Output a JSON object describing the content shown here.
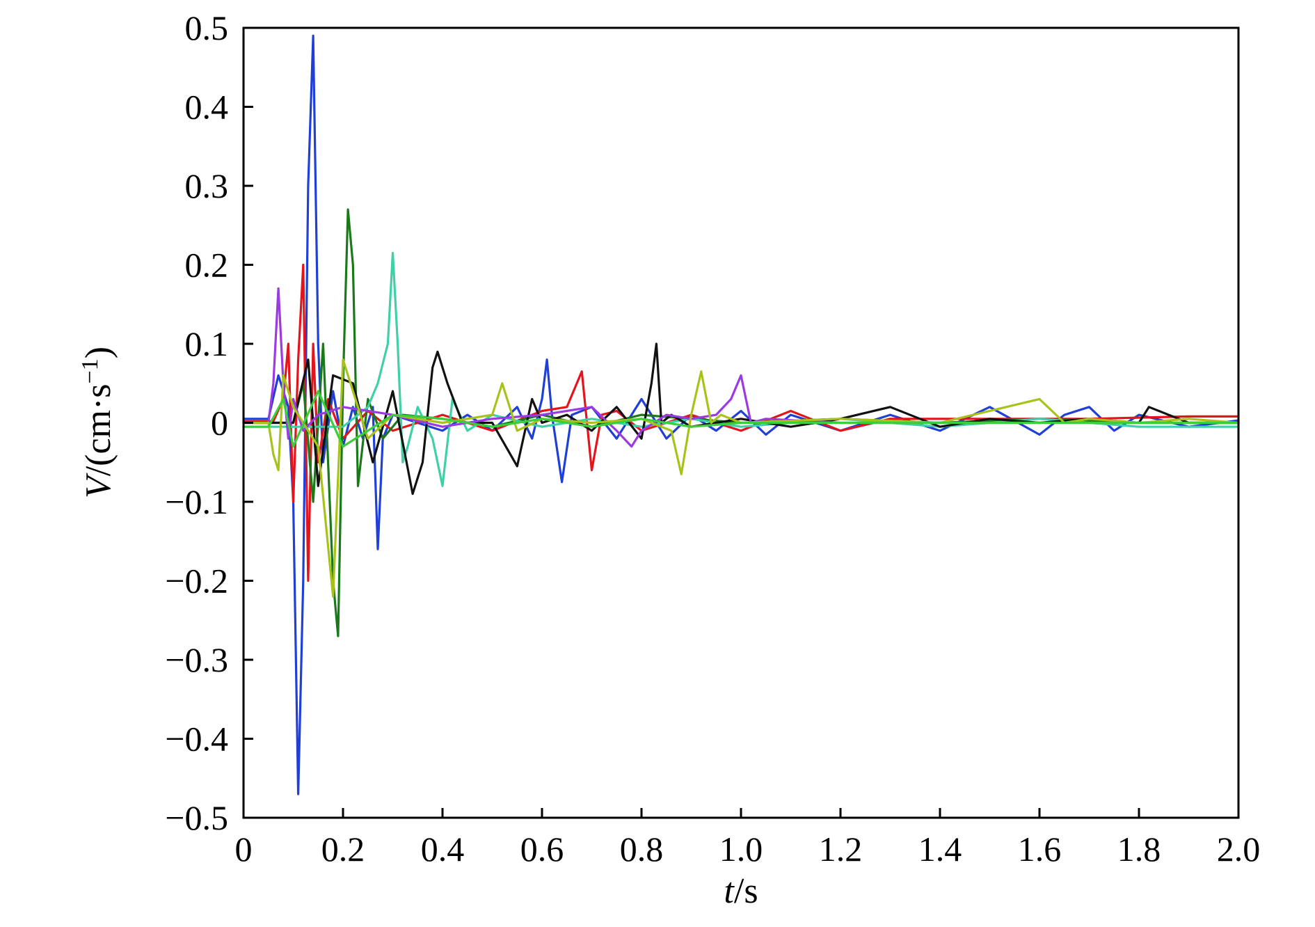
{
  "chart_data": {
    "type": "line",
    "title": "",
    "xlabel_var": "t",
    "xlabel_unit": "/s",
    "ylabel_var": "V",
    "ylabel_unit_pre": "/(cm·s",
    "ylabel_unit_sup": "−1",
    "ylabel_unit_post": ")",
    "xlim": [
      0,
      2.0
    ],
    "ylim": [
      -0.5,
      0.5
    ],
    "grid": false,
    "legend": "none",
    "x_ticks": [
      {
        "value": 0,
        "label": "0"
      },
      {
        "value": 0.2,
        "label": "0.2"
      },
      {
        "value": 0.4,
        "label": "0.4"
      },
      {
        "value": 0.6,
        "label": "0.6"
      },
      {
        "value": 0.8,
        "label": "0.8"
      },
      {
        "value": 1.0,
        "label": "1.0"
      },
      {
        "value": 1.2,
        "label": "1.2"
      },
      {
        "value": 1.4,
        "label": "1.4"
      },
      {
        "value": 1.6,
        "label": "1.6"
      },
      {
        "value": 1.8,
        "label": "1.8"
      },
      {
        "value": 2.0,
        "label": "2.0"
      }
    ],
    "y_ticks": [
      {
        "value": 0.5,
        "label": "0.5"
      },
      {
        "value": 0.4,
        "label": "0.4"
      },
      {
        "value": 0.3,
        "label": "0.3"
      },
      {
        "value": 0.2,
        "label": "0.2"
      },
      {
        "value": 0.1,
        "label": "0.1"
      },
      {
        "value": 0,
        "label": "0"
      },
      {
        "value": -0.1,
        "label": "−0.1"
      },
      {
        "value": -0.2,
        "label": "−0.2"
      },
      {
        "value": -0.3,
        "label": "−0.3"
      },
      {
        "value": -0.4,
        "label": "−0.4"
      },
      {
        "value": -0.5,
        "label": "−0.5"
      }
    ],
    "series": [
      {
        "color": "#1f3fd6",
        "x": [
          0,
          0.05,
          0.07,
          0.09,
          0.1,
          0.11,
          0.12,
          0.13,
          0.14,
          0.15,
          0.16,
          0.18,
          0.2,
          0.22,
          0.24,
          0.26,
          0.27,
          0.28,
          0.3,
          0.35,
          0.4,
          0.45,
          0.5,
          0.55,
          0.58,
          0.6,
          0.61,
          0.62,
          0.64,
          0.66,
          0.7,
          0.75,
          0.8,
          0.85,
          0.9,
          0.95,
          1.0,
          1.05,
          1.1,
          1.2,
          1.3,
          1.4,
          1.5,
          1.6,
          1.65,
          1.7,
          1.75,
          1.8,
          1.9,
          2.0
        ],
        "y": [
          0.005,
          0.005,
          0.06,
          0.02,
          -0.1,
          -0.47,
          -0.2,
          0.3,
          0.49,
          0.1,
          -0.05,
          0.04,
          -0.03,
          0.02,
          -0.02,
          0.02,
          -0.16,
          -0.02,
          0.01,
          0.0,
          -0.01,
          0.01,
          -0.01,
          0.02,
          -0.02,
          0.03,
          0.08,
          0.01,
          -0.075,
          0.01,
          0.02,
          -0.02,
          0.03,
          -0.02,
          0.01,
          -0.01,
          0.015,
          -0.015,
          0.01,
          -0.01,
          0.01,
          -0.01,
          0.02,
          -0.015,
          0.01,
          0.02,
          -0.01,
          0.01,
          -0.005,
          0.003
        ]
      },
      {
        "color": "#e3141c",
        "x": [
          0,
          0.06,
          0.08,
          0.09,
          0.1,
          0.11,
          0.12,
          0.13,
          0.14,
          0.15,
          0.17,
          0.2,
          0.25,
          0.3,
          0.4,
          0.5,
          0.6,
          0.65,
          0.68,
          0.7,
          0.72,
          0.75,
          0.8,
          0.9,
          1.0,
          1.1,
          1.2,
          1.3,
          1.5,
          1.7,
          1.9,
          2.0
        ],
        "y": [
          0.002,
          0.002,
          0.03,
          0.1,
          -0.1,
          0.08,
          0.2,
          -0.2,
          0.1,
          -0.05,
          0.03,
          -0.02,
          0.015,
          -0.01,
          0.01,
          -0.01,
          0.015,
          0.02,
          0.065,
          -0.06,
          0.01,
          0.015,
          -0.01,
          0.01,
          -0.01,
          0.015,
          -0.01,
          0.005,
          0.005,
          0.005,
          0.008,
          0.008
        ]
      },
      {
        "color": "#1a7a1a",
        "x": [
          0,
          0.1,
          0.12,
          0.14,
          0.16,
          0.18,
          0.19,
          0.2,
          0.21,
          0.22,
          0.23,
          0.25,
          0.28,
          0.32,
          0.4,
          0.5,
          0.6,
          0.7,
          0.8,
          0.9,
          1.0,
          1.2,
          1.4,
          1.6,
          1.8,
          2.0
        ],
        "y": [
          0.0,
          0.0,
          0.05,
          -0.1,
          0.1,
          -0.2,
          -0.27,
          0.05,
          0.27,
          0.2,
          -0.08,
          0.03,
          -0.02,
          0.01,
          0.005,
          -0.005,
          0.01,
          -0.005,
          0.01,
          0.005,
          0.0,
          0.005,
          0.0,
          0.005,
          0.0,
          0.0
        ]
      },
      {
        "color": "#40d0a8",
        "x": [
          0,
          0.2,
          0.25,
          0.27,
          0.29,
          0.3,
          0.31,
          0.32,
          0.33,
          0.35,
          0.38,
          0.4,
          0.42,
          0.45,
          0.5,
          0.6,
          0.7,
          0.8,
          0.9,
          1.0,
          1.2,
          1.4,
          1.6,
          1.8,
          2.0
        ],
        "y": [
          -0.005,
          -0.005,
          0.02,
          0.05,
          0.1,
          0.215,
          0.1,
          -0.05,
          -0.03,
          0.02,
          -0.02,
          -0.08,
          0.03,
          -0.01,
          0.01,
          -0.005,
          0.005,
          -0.005,
          0.005,
          -0.005,
          0.005,
          -0.005,
          0.005,
          -0.005,
          -0.005
        ]
      },
      {
        "color": "#111111",
        "x": [
          0,
          0.1,
          0.13,
          0.15,
          0.18,
          0.22,
          0.26,
          0.3,
          0.34,
          0.36,
          0.38,
          0.39,
          0.41,
          0.44,
          0.5,
          0.55,
          0.58,
          0.6,
          0.65,
          0.7,
          0.75,
          0.8,
          0.82,
          0.83,
          0.84,
          0.86,
          0.9,
          1.0,
          1.1,
          1.2,
          1.3,
          1.4,
          1.5,
          1.6,
          1.7,
          1.8,
          1.82,
          1.9,
          2.0
        ],
        "y": [
          0.0,
          0.0,
          0.08,
          -0.08,
          0.06,
          0.05,
          -0.05,
          0.04,
          -0.09,
          -0.05,
          0.07,
          0.09,
          0.05,
          0.0,
          0.0,
          -0.055,
          0.03,
          0.0,
          0.01,
          -0.01,
          0.02,
          -0.02,
          0.05,
          0.1,
          0.0,
          0.01,
          -0.005,
          0.005,
          -0.005,
          0.005,
          0.02,
          -0.005,
          0.005,
          0.0,
          0.005,
          0.0,
          0.02,
          0.0,
          0.0
        ]
      },
      {
        "color": "#9a3ae0",
        "x": [
          0,
          0.05,
          0.06,
          0.07,
          0.08,
          0.09,
          0.1,
          0.12,
          0.15,
          0.2,
          0.3,
          0.4,
          0.5,
          0.6,
          0.7,
          0.75,
          0.78,
          0.8,
          0.85,
          0.9,
          0.95,
          0.98,
          1.0,
          1.02,
          1.05,
          1.2,
          1.4,
          1.6,
          1.8,
          2.0
        ],
        "y": [
          0.0,
          0.0,
          0.05,
          0.17,
          0.05,
          -0.02,
          0.03,
          -0.01,
          0.01,
          0.02,
          0.01,
          -0.005,
          0.005,
          0.01,
          0.02,
          -0.01,
          -0.03,
          -0.01,
          0.01,
          0.005,
          0.01,
          0.03,
          0.06,
          0.0,
          0.005,
          0.0,
          0.0,
          0.0,
          0.0,
          0.0
        ]
      },
      {
        "color": "#a8c21a",
        "x": [
          0,
          0.05,
          0.06,
          0.07,
          0.08,
          0.1,
          0.15,
          0.18,
          0.2,
          0.25,
          0.3,
          0.4,
          0.5,
          0.52,
          0.55,
          0.6,
          0.7,
          0.8,
          0.86,
          0.88,
          0.9,
          0.92,
          0.94,
          0.96,
          1.0,
          1.2,
          1.4,
          1.6,
          1.65,
          1.7,
          1.8,
          1.9,
          2.0
        ],
        "y": [
          0.0,
          0.0,
          -0.04,
          -0.06,
          0.06,
          0.02,
          -0.03,
          -0.22,
          0.08,
          -0.02,
          0.01,
          0.0,
          0.01,
          0.05,
          -0.01,
          0.005,
          0.0,
          0.005,
          -0.01,
          -0.065,
          0.01,
          0.065,
          0.0,
          0.01,
          0.0,
          0.005,
          0.0,
          0.03,
          0.0,
          0.005,
          0.0,
          0.005,
          0.0
        ]
      },
      {
        "color": "#3ccd3c",
        "x": [
          0,
          0.05,
          0.08,
          0.1,
          0.15,
          0.2,
          0.3,
          0.4,
          0.5,
          0.6,
          0.7,
          0.8,
          0.9,
          1.0,
          1.2,
          1.5,
          2.0
        ],
        "y": [
          -0.005,
          -0.005,
          0.03,
          -0.03,
          0.04,
          -0.03,
          0.01,
          0.005,
          -0.005,
          0.005,
          -0.005,
          0.005,
          -0.005,
          0.0,
          0.0,
          0.0,
          0.0
        ]
      }
    ]
  }
}
